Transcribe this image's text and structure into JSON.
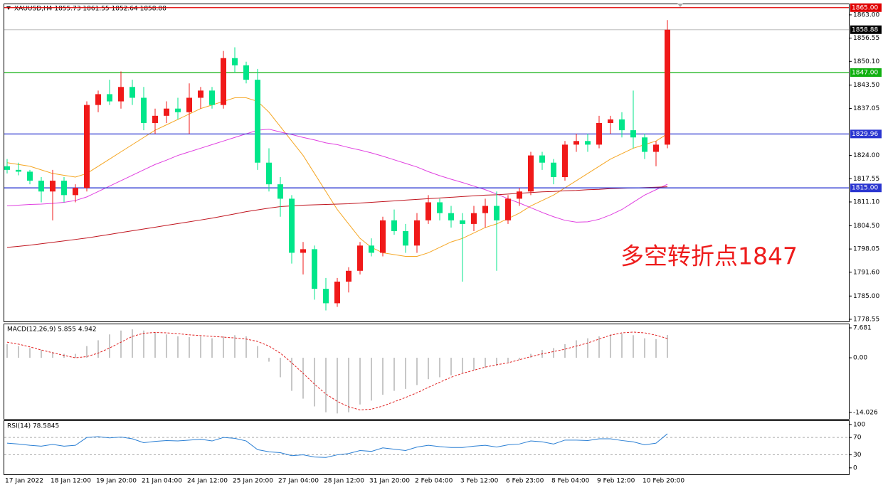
{
  "chart_data": [
    {
      "type": "candlestick",
      "title": "XAUUSD,H4 1855.73 1861.55 1852.64 1858.88",
      "annotation": "多空转折点1847",
      "annotation_color": "#ee1c1c",
      "categories": [
        "17 Jan 2022",
        null,
        null,
        null,
        "18 Jan 12:00",
        null,
        null,
        null,
        "19 Jan 20:00",
        null,
        null,
        null,
        "21 Jan 04:00",
        null,
        null,
        null,
        "24 Jan 12:00",
        null,
        null,
        null,
        "25 Jan 20:00",
        null,
        null,
        null,
        "27 Jan 04:00",
        null,
        null,
        null,
        "28 Jan 12:00",
        null,
        null,
        null,
        "31 Jan 20:00",
        null,
        null,
        null,
        "2 Feb 04:00",
        null,
        null,
        null,
        "3 Feb 12:00",
        null,
        null,
        null,
        "6 Feb 23:00",
        null,
        null,
        null,
        "8 Feb 04:00",
        null,
        null,
        null,
        "9 Feb 12:00",
        null,
        null,
        null,
        "10 Feb 20:00",
        null,
        null
      ],
      "open": [
        1821,
        1820,
        1819.5,
        1817,
        1814,
        1817,
        1813,
        1815,
        1838,
        1841,
        1839,
        1843,
        1840,
        1833,
        1835,
        1837,
        1836,
        1840,
        1842,
        1838,
        1851,
        1849,
        1845,
        1822,
        1816,
        1812,
        1797,
        1798,
        1787,
        1783,
        1789,
        1792,
        1799,
        1797,
        1806,
        1803,
        1799,
        1806,
        1811,
        1808,
        1806,
        1805,
        1808,
        1810,
        1806,
        1812,
        1814,
        1824,
        1822,
        1818,
        1827,
        1828,
        1827,
        1833,
        1834,
        1831,
        1829,
        1825,
        1827
      ],
      "high": [
        1823,
        1822,
        1820,
        1818,
        1820,
        1818,
        1816,
        1839,
        1842,
        1845,
        1847.3,
        1845,
        1843,
        1837,
        1839,
        1840,
        1844,
        1843,
        1843,
        1853,
        1854,
        1850,
        1848,
        1826,
        1818,
        1813,
        1800,
        1799,
        1790,
        1790,
        1793,
        1800,
        1801,
        1807,
        1809,
        1805,
        1808,
        1813,
        1812,
        1810,
        1808,
        1810,
        1812,
        1814,
        1813,
        1815,
        1825,
        1825,
        1823,
        1828,
        1830,
        1830,
        1835,
        1835,
        1836,
        1842,
        1830,
        1828,
        1861.55
      ],
      "low": [
        1819,
        1818.5,
        1816,
        1811,
        1806,
        1811,
        1811,
        1814,
        1836,
        1838,
        1837,
        1838,
        1831,
        1830,
        1833,
        1834,
        1830,
        1837,
        1837,
        1837,
        1847,
        1844,
        1820,
        1814,
        1807,
        1794,
        1791,
        1784,
        1781,
        1782,
        1786,
        1791,
        1796,
        1796,
        1802,
        1797,
        1797,
        1805,
        1806,
        1804,
        1789,
        1803,
        1804,
        1792,
        1805,
        1810,
        1813,
        1820,
        1816,
        1817,
        1825,
        1825,
        1826,
        1830,
        1829,
        1826,
        1823,
        1821,
        1826
      ],
      "close": [
        1820,
        1819.5,
        1817,
        1814,
        1817,
        1813,
        1815,
        1838,
        1841,
        1839,
        1843,
        1840,
        1833,
        1835,
        1837,
        1836,
        1840,
        1842,
        1838,
        1851,
        1849,
        1845,
        1822,
        1816,
        1812,
        1797,
        1798,
        1787,
        1783,
        1789,
        1792,
        1799,
        1797,
        1806,
        1803,
        1799,
        1806,
        1811,
        1808,
        1806,
        1805,
        1808,
        1810,
        1806,
        1812,
        1814,
        1824,
        1822,
        1818,
        1827,
        1828,
        1827,
        1833,
        1834,
        1831,
        1829,
        1825,
        1827,
        1858.88
      ],
      "up_color": "#f01919",
      "down_color": "#00e68a",
      "lines": [
        {
          "color": "#f5a623",
          "values": [
            1822,
            1821.5,
            1821,
            1820,
            1819,
            1818.5,
            1818,
            1819,
            1821,
            1823,
            1825,
            1827,
            1829,
            1831,
            1832.5,
            1834,
            1835.5,
            1837,
            1838,
            1839,
            1840,
            1840,
            1839,
            1836,
            1832,
            1828,
            1824,
            1819,
            1814,
            1809,
            1805,
            1801,
            1798.5,
            1797,
            1796.5,
            1796,
            1796,
            1797,
            1798.5,
            1800,
            1801,
            1802.5,
            1804,
            1805,
            1806.5,
            1808,
            1810,
            1811.5,
            1813,
            1815,
            1817,
            1819,
            1821,
            1823,
            1824.5,
            1826,
            1827,
            1828,
            1830
          ]
        },
        {
          "color": "#e040e0",
          "values": [
            1810,
            1810.2,
            1810.4,
            1810.5,
            1810.7,
            1811,
            1811.5,
            1812.5,
            1814,
            1815.5,
            1817,
            1818.5,
            1820,
            1821.5,
            1822.7,
            1824,
            1825,
            1826,
            1827,
            1828,
            1829,
            1830,
            1831,
            1831.3,
            1830.5,
            1829.8,
            1829,
            1828.3,
            1827.5,
            1827,
            1826.2,
            1825.5,
            1824.7,
            1823.8,
            1822.8,
            1821.8,
            1820.8,
            1819.5,
            1818.4,
            1817.4,
            1816.5,
            1815.5,
            1814.5,
            1813.3,
            1812,
            1810.8,
            1809.5,
            1808.2,
            1807,
            1806,
            1805.5,
            1805.6,
            1806.3,
            1807.5,
            1809,
            1811,
            1813,
            1814.5,
            1816
          ]
        },
        {
          "color": "#c0141e",
          "values": [
            1798.5,
            1798.8,
            1799.1,
            1799.5,
            1799.9,
            1800.3,
            1800.7,
            1801.1,
            1801.6,
            1802.1,
            1802.6,
            1803.1,
            1803.6,
            1804.1,
            1804.6,
            1805.1,
            1805.6,
            1806.1,
            1806.6,
            1807.2,
            1807.8,
            1808.4,
            1808.9,
            1809.4,
            1809.8,
            1810,
            1810.2,
            1810.3,
            1810.4,
            1810.5,
            1810.6,
            1810.8,
            1811,
            1811.2,
            1811.4,
            1811.6,
            1811.8,
            1812,
            1812.2,
            1812.4,
            1812.6,
            1812.8,
            1813,
            1813.1,
            1813.3,
            1813.5,
            1813.7,
            1813.9,
            1814,
            1814.2,
            1814.3,
            1814.5,
            1814.6,
            1814.8,
            1814.9,
            1815,
            1815.1,
            1815.2,
            1815.3
          ]
        }
      ],
      "levels": [
        {
          "value": 1865,
          "label": "1865.00",
          "color": "#e00000",
          "box": "#e00000"
        },
        {
          "value": 1858.88,
          "label": "1858.88",
          "color": "#c8c8c8",
          "box": "#000000"
        },
        {
          "value": 1847,
          "label": "1847.00",
          "color": "#10b010",
          "box": "#10b010"
        },
        {
          "value": 1829.96,
          "label": "1829.96",
          "color": "#2a35d0",
          "box": "#2a35d0"
        },
        {
          "value": 1815,
          "label": "1815.00",
          "color": "#2a35d0",
          "box": "#2a35d0"
        }
      ],
      "ylim": [
        1777.95,
        1865.94
      ],
      "yticks": [
        {
          "value": 1863,
          "label": "1863.00"
        },
        1856.55,
        {
          "value": 1850.1,
          "label": "1850.10"
        },
        {
          "value": 1843.5,
          "label": "1843.50"
        },
        1837.05,
        {
          "value": 1824,
          "label": "1824.00"
        },
        1817.55,
        {
          "value": 1811.1,
          "label": "1811.10"
        },
        {
          "value": 1804.5,
          "label": "1804.50"
        },
        1798.05,
        {
          "value": 1791.6,
          "label": "1791.60"
        },
        {
          "value": 1785,
          "label": "1785.00"
        },
        1778.55
      ]
    },
    {
      "type": "macd",
      "title": "MACD(12,26,9) 5.855 4.942",
      "histogram": {
        "color": "#b4b4b4",
        "values": [
          3.5,
          3,
          2.5,
          2,
          1.5,
          1,
          1,
          3,
          4.5,
          6,
          7,
          7.3,
          7,
          6.5,
          6,
          5.5,
          5.3,
          5.5,
          5,
          5.5,
          5.8,
          5.5,
          3,
          -1,
          -5,
          -8.5,
          -10.5,
          -12.5,
          -14,
          -14.3,
          -14,
          -12,
          -11,
          -9.5,
          -8.5,
          -8,
          -7,
          -5.5,
          -5,
          -4.5,
          -4,
          -3.2,
          -2.5,
          -2,
          -1.2,
          -0.5,
          1,
          2,
          2.5,
          3.5,
          4.5,
          5,
          5.5,
          6,
          6.2,
          5.8,
          5,
          4.8,
          5.855
        ]
      },
      "signal": {
        "color": "#e02020",
        "values": [
          4,
          3.5,
          2.8,
          2,
          1.3,
          0.6,
          0,
          0.3,
          1.2,
          2.5,
          4,
          5.5,
          6.3,
          6.5,
          6.4,
          6.2,
          5.9,
          5.7,
          5.5,
          5.3,
          5.1,
          4.8,
          4.2,
          3,
          1.2,
          -1.3,
          -4,
          -6.8,
          -9.3,
          -11.2,
          -12.6,
          -13.4,
          -13.2,
          -12.4,
          -11.3,
          -10.2,
          -9,
          -7.6,
          -6.3,
          -5,
          -4,
          -3.2,
          -2.4,
          -1.8,
          -1.3,
          -0.5,
          0.3,
          1,
          1.6,
          2.2,
          3,
          3.8,
          4.8,
          5.8,
          6.4,
          6.6,
          6.4,
          5.8,
          4.942
        ]
      },
      "ylim": [
        -15.7,
        8.6
      ],
      "yticks": [
        7.681,
        {
          "value": 0,
          "label": "0.00"
        },
        -14.026
      ]
    },
    {
      "type": "rsi",
      "title": "RSI(14) 78.5845",
      "color": "#2a7fd4",
      "values": [
        57,
        55,
        52,
        50,
        54,
        50,
        52,
        70,
        72,
        69,
        71,
        67,
        58,
        61,
        63,
        62,
        64,
        66,
        62,
        70,
        68,
        62,
        42,
        37,
        35,
        28,
        30,
        25,
        24,
        30,
        33,
        40,
        38,
        46,
        43,
        40,
        48,
        52,
        49,
        47,
        47,
        50,
        52,
        48,
        53,
        55,
        62,
        60,
        55,
        64,
        64,
        63,
        67,
        67,
        63,
        60,
        53,
        57,
        78.5845
      ],
      "levels": [
        70,
        30
      ],
      "ylim": [
        -15,
        108
      ],
      "yticks": [
        100,
        70,
        30,
        0
      ]
    }
  ]
}
